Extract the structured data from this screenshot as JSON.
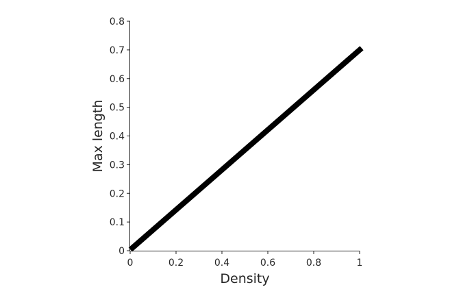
{
  "chart_data": {
    "type": "line",
    "title": "",
    "xlabel": "Density",
    "ylabel": "Max length",
    "xlim": [
      0,
      1
    ],
    "ylim": [
      0,
      0.8
    ],
    "x_ticks": [
      0,
      0.2,
      0.4,
      0.6,
      0.8,
      1
    ],
    "x_tick_labels": [
      "0",
      "0.2",
      "0.4",
      "0.6",
      "0.8",
      "1"
    ],
    "y_ticks": [
      0,
      0.1,
      0.2,
      0.3,
      0.4,
      0.5,
      0.6,
      0.7,
      0.8
    ],
    "y_tick_labels": [
      "0",
      "0.1",
      "0.2",
      "0.3",
      "0.4",
      "0.5",
      "0.6",
      "0.7",
      "0.8"
    ],
    "grid": false,
    "legend": "none",
    "series": [
      {
        "x": [
          0.01,
          1.0
        ],
        "y": [
          0.01,
          0.7
        ],
        "color": "#000000"
      }
    ]
  }
}
